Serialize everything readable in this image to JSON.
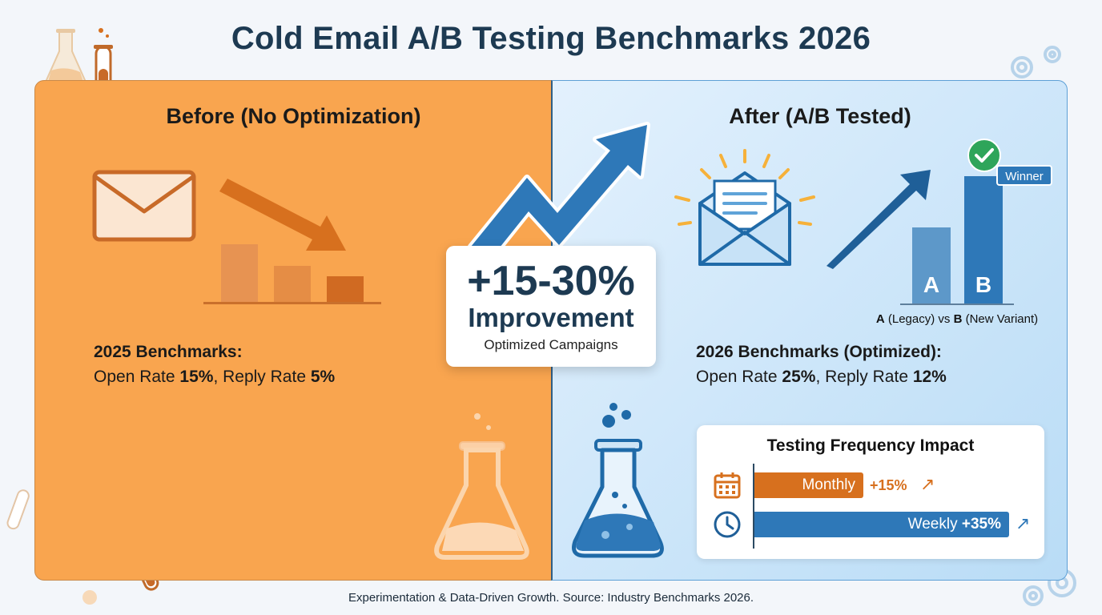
{
  "title": "Cold Email A/B Testing Benchmarks 2026",
  "footer": "Experimentation & Data-Driven Growth. Source: Industry Benchmarks 2026.",
  "left": {
    "heading": "Before (No Optimization)",
    "benchmark_title": "2025 Benchmarks:",
    "open_label": "Open Rate ",
    "open_value": "15%",
    "sep": ", ",
    "reply_label": "Reply Rate ",
    "reply_value": "5%"
  },
  "center": {
    "improvement": "+15-30%",
    "label": "Improvement",
    "sublabel": "Optimized Campaigns"
  },
  "right": {
    "heading": "After (A/B Tested)",
    "benchmark_title": "2026 Benchmarks (Optimized):",
    "open_label": "Open Rate ",
    "open_value": "25%",
    "sep": ", ",
    "reply_label": "Reply Rate ",
    "reply_value": "12%",
    "bar_a": "A",
    "bar_b": "B",
    "winner": "Winner",
    "caption_a": "A",
    "caption_a_desc": " (Legacy) vs ",
    "caption_b": "B",
    "caption_b_desc": " (New Variant)"
  },
  "frequency": {
    "title": "Testing Frequency Impact",
    "monthly_label": "Monthly",
    "monthly_value": "+15%",
    "weekly_label": "Weekly",
    "weekly_value": "+35%"
  },
  "colors": {
    "orange_panel": "#f9a54f",
    "orange_dark": "#d7701e",
    "blue_dark": "#2e78b8",
    "navy_title": "#1d3a52"
  },
  "icons": [
    "envelope-icon",
    "down-trend-arrow-icon",
    "up-trend-arrow-icon",
    "open-envelope-icon",
    "check-badge-icon",
    "flask-icon",
    "calendar-icon",
    "clock-icon",
    "gear-icon",
    "test-tube-icon"
  ]
}
